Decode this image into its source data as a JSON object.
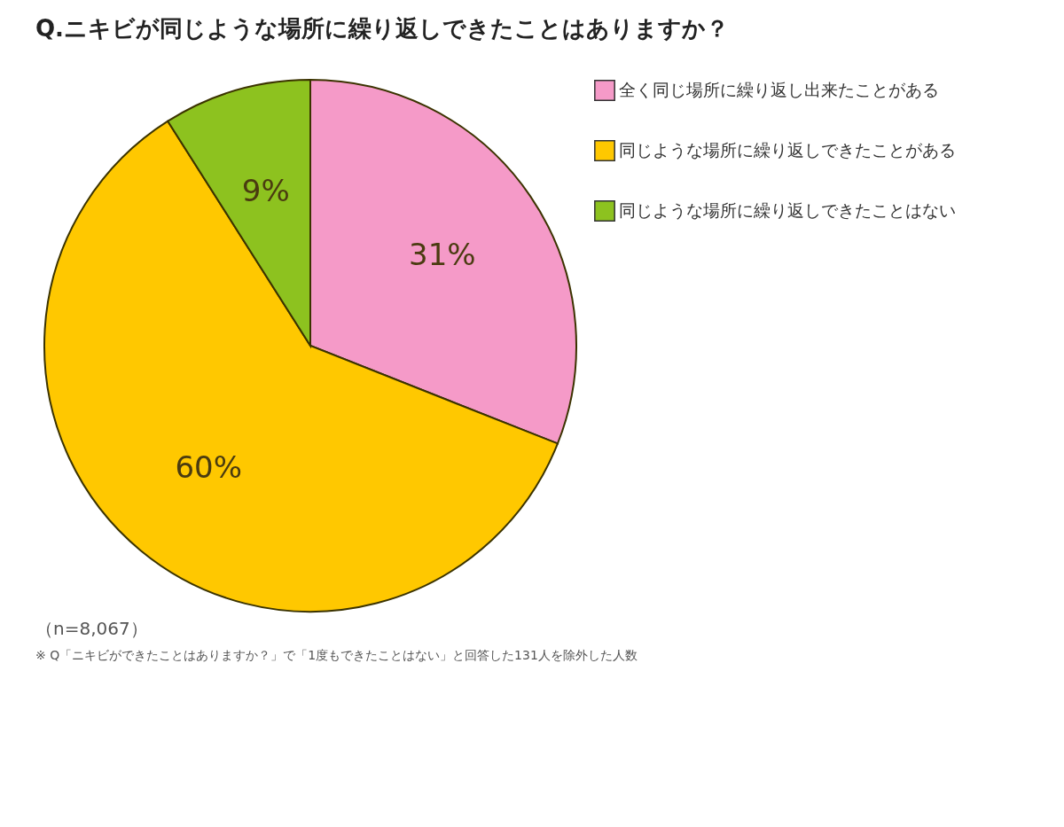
{
  "chart_data": {
    "type": "pie",
    "title": "Q.ニキビが同じような場所に繰り返しできたことはありますか？",
    "categories": [
      "全く同じ場所に繰り返し出来たことがある",
      "同じような場所に繰り返しできたことがある",
      "同じような場所に繰り返しできたことはない"
    ],
    "values": [
      31,
      60,
      9
    ],
    "colors": [
      "#f59ac8",
      "#ffc800",
      "#8dc21f"
    ],
    "value_labels": [
      "31%",
      "60%",
      "9%"
    ],
    "legend": "right",
    "annotations": [
      "（n=8,067）",
      "※ Q「ニキビができたことはありますか？」で「1度もできたことはない」と回答した131人を除外した人数"
    ]
  }
}
